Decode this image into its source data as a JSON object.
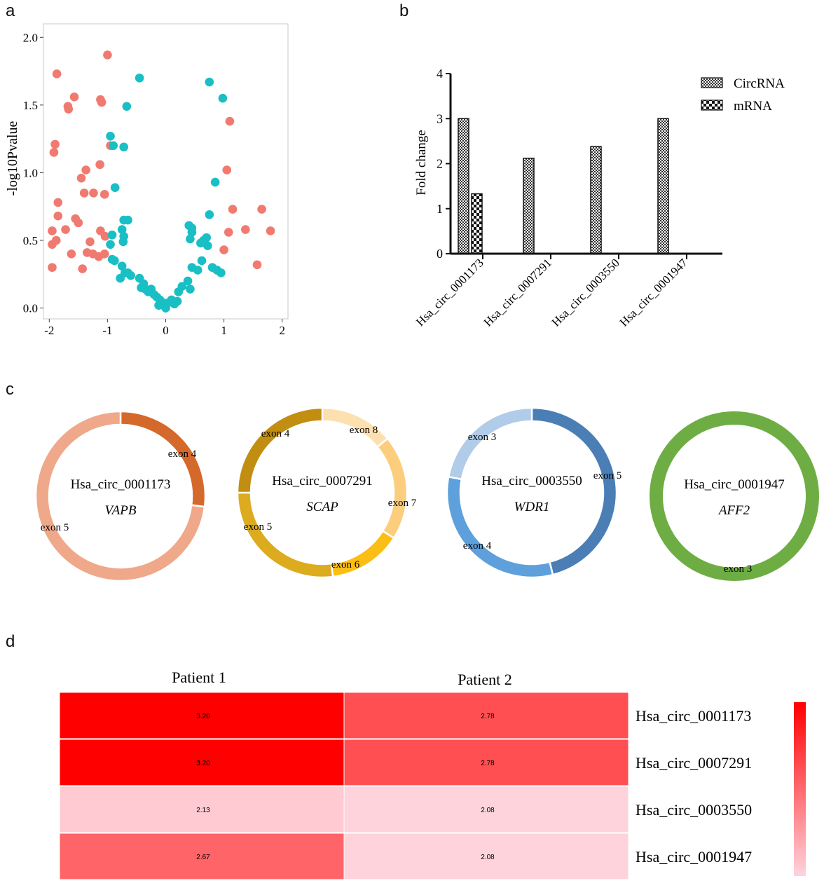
{
  "panels": {
    "a": "a",
    "b": "b",
    "c": "c",
    "d": "d"
  },
  "colors": {
    "red_points": "#f07a70",
    "teal_points": "#19bfc4"
  },
  "chart_data": [
    {
      "id": "a",
      "type": "scatter",
      "title": "",
      "xlabel": "",
      "ylabel": "-log10Pvalue",
      "xlim": [
        -2.1,
        2.1
      ],
      "ylim": [
        -0.08,
        2.1
      ],
      "xticks": [
        "-2",
        "-1",
        "0",
        "1",
        "2"
      ],
      "yticks": [
        "0.0",
        "0.5",
        "1.0",
        "1.5",
        "2.0"
      ],
      "series": [
        {
          "name": "red",
          "color": "#f07a70",
          "points": [
            [
              -1.0,
              1.87
            ],
            [
              -1.87,
              1.73
            ],
            [
              -1.57,
              1.56
            ],
            [
              -1.68,
              1.49
            ],
            [
              -1.67,
              1.47
            ],
            [
              -1.12,
              1.54
            ],
            [
              -1.1,
              1.52
            ],
            [
              -0.95,
              1.2
            ],
            [
              -1.9,
              1.21
            ],
            [
              -1.92,
              1.15
            ],
            [
              -1.13,
              1.06
            ],
            [
              -1.37,
              1.02
            ],
            [
              -1.45,
              0.96
            ],
            [
              -1.4,
              0.85
            ],
            [
              -1.24,
              0.85
            ],
            [
              -1.05,
              0.84
            ],
            [
              -1.85,
              0.78
            ],
            [
              -1.85,
              0.68
            ],
            [
              -1.55,
              0.66
            ],
            [
              -1.5,
              0.63
            ],
            [
              -1.72,
              0.58
            ],
            [
              -1.95,
              0.57
            ],
            [
              -1.12,
              0.57
            ],
            [
              -1.04,
              0.53
            ],
            [
              -1.88,
              0.5
            ],
            [
              -1.95,
              0.47
            ],
            [
              -1.3,
              0.49
            ],
            [
              -1.25,
              0.4
            ],
            [
              -1.35,
              0.41
            ],
            [
              -1.62,
              0.4
            ],
            [
              -1.15,
              0.38
            ],
            [
              -1.05,
              0.4
            ],
            [
              -1.95,
              0.3
            ],
            [
              -1.43,
              0.29
            ],
            [
              1.1,
              1.38
            ],
            [
              1.05,
              1.02
            ],
            [
              1.15,
              0.73
            ],
            [
              1.08,
              0.56
            ],
            [
              1.0,
              0.43
            ],
            [
              1.37,
              0.58
            ],
            [
              1.65,
              0.73
            ],
            [
              1.8,
              0.57
            ],
            [
              1.57,
              0.32
            ]
          ]
        },
        {
          "name": "teal",
          "color": "#19bfc4",
          "points": [
            [
              -0.45,
              1.7
            ],
            [
              -0.67,
              1.49
            ],
            [
              -0.95,
              1.27
            ],
            [
              -0.9,
              1.2
            ],
            [
              -0.72,
              1.19
            ],
            [
              -0.87,
              0.89
            ],
            [
              -0.72,
              0.65
            ],
            [
              -0.65,
              0.65
            ],
            [
              -0.75,
              0.58
            ],
            [
              -0.92,
              0.54
            ],
            [
              -0.72,
              0.53
            ],
            [
              -0.73,
              0.49
            ],
            [
              -0.95,
              0.47
            ],
            [
              -0.88,
              0.35
            ],
            [
              -0.92,
              0.36
            ],
            [
              -0.75,
              0.31
            ],
            [
              -0.7,
              0.26
            ],
            [
              -0.65,
              0.26
            ],
            [
              -0.78,
              0.22
            ],
            [
              -0.6,
              0.24
            ],
            [
              -0.45,
              0.22
            ],
            [
              -0.38,
              0.18
            ],
            [
              -0.42,
              0.15
            ],
            [
              -0.35,
              0.14
            ],
            [
              -0.3,
              0.12
            ],
            [
              -0.25,
              0.14
            ],
            [
              -0.2,
              0.1
            ],
            [
              -0.15,
              0.08
            ],
            [
              -0.1,
              0.06
            ],
            [
              -0.12,
              0.02
            ],
            [
              -0.05,
              0.04
            ],
            [
              0.0,
              0.0
            ],
            [
              0.05,
              0.04
            ],
            [
              0.1,
              0.06
            ],
            [
              0.15,
              0.03
            ],
            [
              0.2,
              0.05
            ],
            [
              0.22,
              0.12
            ],
            [
              0.28,
              0.16
            ],
            [
              0.38,
              0.2
            ],
            [
              0.42,
              0.14
            ],
            [
              0.45,
              0.3
            ],
            [
              0.55,
              0.28
            ],
            [
              0.62,
              0.35
            ],
            [
              0.42,
              0.51
            ],
            [
              0.45,
              0.56
            ],
            [
              0.4,
              0.61
            ],
            [
              0.45,
              0.59
            ],
            [
              0.6,
              0.48
            ],
            [
              0.65,
              0.5
            ],
            [
              0.72,
              0.46
            ],
            [
              0.7,
              0.52
            ],
            [
              0.75,
              0.69
            ],
            [
              0.8,
              0.3
            ],
            [
              0.88,
              0.28
            ],
            [
              0.95,
              0.26
            ],
            [
              0.85,
              0.93
            ],
            [
              0.98,
              1.55
            ],
            [
              0.75,
              1.67
            ]
          ]
        }
      ]
    },
    {
      "id": "b",
      "type": "bar",
      "title": "",
      "xlabel": "",
      "ylabel": "Fold change",
      "ylim": [
        0,
        4
      ],
      "yticks": [
        "0",
        "1",
        "2",
        "3",
        "4"
      ],
      "categories": [
        "Hsa_circ_0001173",
        "Hsa_circ_0007291",
        "Hsa_circ_0003550",
        "Hsa_circ_0001947"
      ],
      "series": [
        {
          "name": "CircRNA",
          "values": [
            3.0,
            2.12,
            2.38,
            3.0
          ]
        },
        {
          "name": "mRNA",
          "values": [
            1.33,
            0,
            0,
            0
          ]
        }
      ],
      "legend": [
        "CircRNA",
        "mRNA"
      ],
      "legend_placement": "top-right"
    },
    {
      "id": "c",
      "type": "pie",
      "title": "",
      "donuts": [
        {
          "circ": "Hsa_circ_0001173",
          "gene": "VAPB",
          "segments": [
            {
              "label": "exon 4",
              "value": 0.27,
              "color": "#d4692b"
            },
            {
              "label": "exon 5",
              "value": 0.73,
              "color": "#efa88a"
            }
          ]
        },
        {
          "circ": "Hsa_circ_0007291",
          "gene": "SCAP",
          "segments": [
            {
              "label": "exon 8",
              "value": 0.14,
              "color": "#fde0b0"
            },
            {
              "label": "exon 7",
              "value": 0.2,
              "color": "#fccd7c"
            },
            {
              "label": "exon 6",
              "value": 0.14,
              "color": "#fbbe14"
            },
            {
              "label": "exon 5",
              "value": 0.27,
              "color": "#dcab1e"
            },
            {
              "label": "exon 4",
              "value": 0.25,
              "color": "#c18e12"
            }
          ]
        },
        {
          "circ": "Hsa_circ_0003550",
          "gene": "WDR1",
          "segments": [
            {
              "label": "exon 5",
              "value": 0.46,
              "color": "#4a7eb5"
            },
            {
              "label": "exon 4",
              "value": 0.32,
              "color": "#5da0dc"
            },
            {
              "label": "exon 3",
              "value": 0.22,
              "color": "#b0cce9"
            }
          ]
        },
        {
          "circ": "Hsa_circ_0001947",
          "gene": "AFF2",
          "segments": [
            {
              "label": "exon 3",
              "value": 1.0,
              "color": "#6ead44"
            }
          ]
        }
      ]
    },
    {
      "id": "d",
      "type": "heatmap",
      "title": "",
      "columns": [
        "Patient 1",
        "Patient 2"
      ],
      "rows": [
        "Hsa_circ_0001173",
        "Hsa_circ_0007291",
        "Hsa_circ_0003550",
        "Hsa_circ_0001947"
      ],
      "values": [
        [
          3.2,
          2.78
        ],
        [
          3.2,
          2.78
        ],
        [
          2.13,
          2.08
        ],
        [
          2.67,
          2.08
        ]
      ],
      "value_labels": [
        [
          "3.20",
          "2.78"
        ],
        [
          "3.20",
          "2.78"
        ],
        [
          "2.13",
          "2.08"
        ],
        [
          "2.67",
          "2.08"
        ]
      ],
      "vmin": 2.08,
      "vmax": 3.2,
      "colorscale": [
        "#ffd3dc",
        "#ff0000"
      ]
    }
  ]
}
